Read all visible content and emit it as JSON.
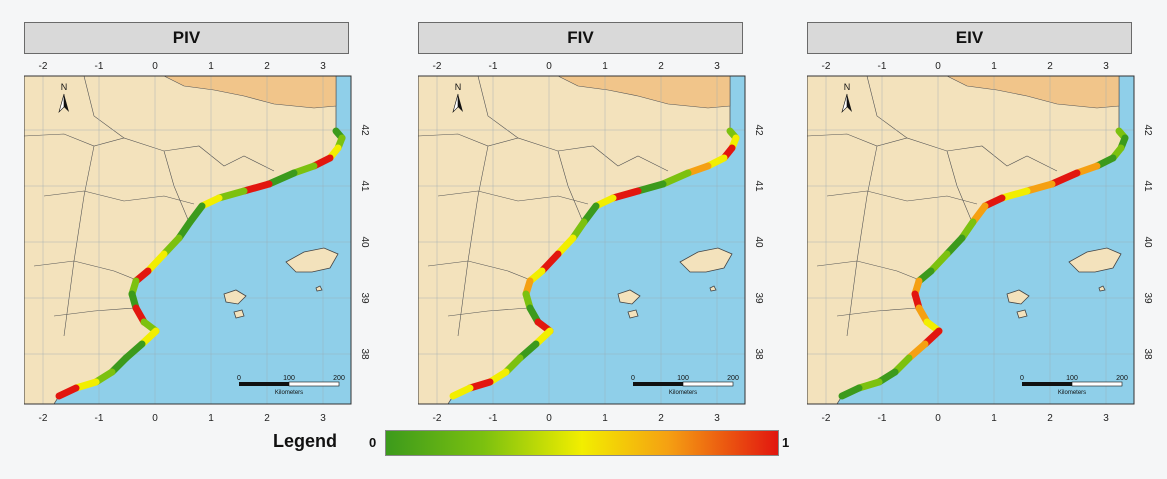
{
  "panels": [
    {
      "title": "PIV"
    },
    {
      "title": "FIV"
    },
    {
      "title": "EIV"
    }
  ],
  "axes": {
    "x_ticks": [
      "-2",
      "-1",
      "0",
      "1",
      "2",
      "3"
    ],
    "y_ticks": [
      "38",
      "39",
      "40",
      "41",
      "42"
    ]
  },
  "north_arrow": {
    "label": "N"
  },
  "scale_bar": {
    "labels": [
      "0",
      "100",
      "200"
    ],
    "unit": "Kilometers"
  },
  "legend": {
    "title": "Legend",
    "min": "0",
    "max": "1"
  },
  "colors": {
    "sea": "#8fcfe9",
    "land": "#f3e2bc",
    "france": "#f1c58a",
    "low": "#3c9a1c",
    "mid": "#f2ee00",
    "high": "#e2160f"
  }
}
